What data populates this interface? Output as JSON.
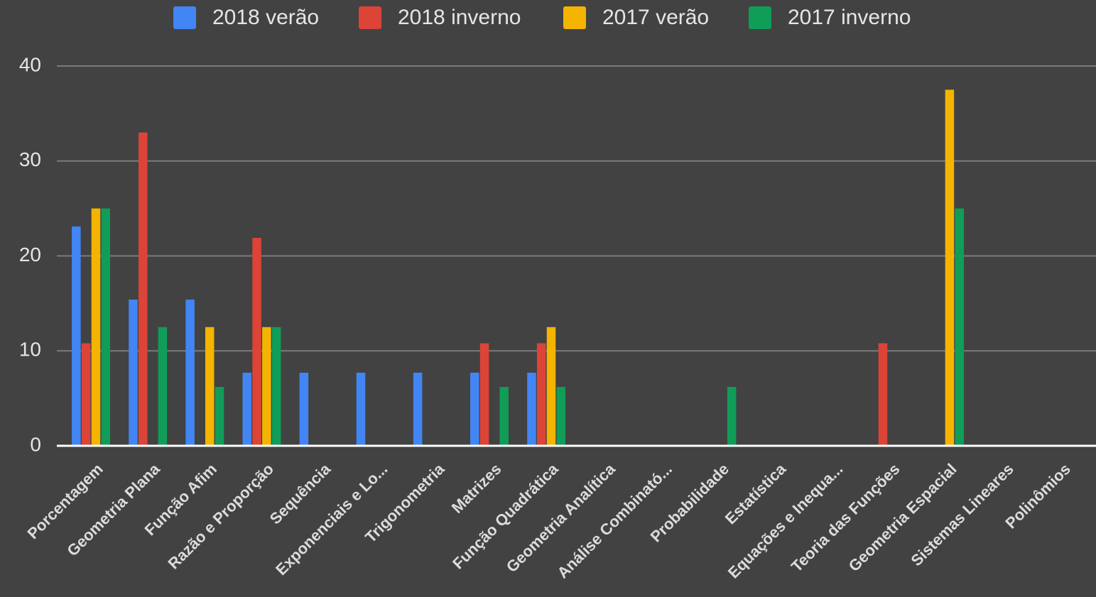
{
  "chart_data": {
    "type": "bar",
    "categories": [
      "Porcentagem",
      "Geometria Plana",
      "Função Afim",
      "Razão e Proporção",
      "Sequência",
      "Exponenciais e Lo...",
      "Trigonometria",
      "Matrizes",
      "Função Quadrática",
      "Geometria Analítica",
      "Análise Combinató...",
      "Probabilidade",
      "Estatística",
      "Equações e Inequa...",
      "Teoria das Funções",
      "Geometria Espacial",
      "Sistemas Lineares",
      "Polinômios"
    ],
    "series": [
      {
        "name": "2018 verão",
        "color": "#4285f4",
        "values": [
          23.1,
          15.4,
          15.4,
          7.7,
          7.7,
          7.7,
          7.7,
          7.7,
          7.7,
          0,
          0,
          0,
          0,
          0,
          0,
          0,
          0,
          0
        ]
      },
      {
        "name": "2018 inverno",
        "color": "#db4437",
        "values": [
          10.8,
          33,
          0,
          21.9,
          0,
          0,
          0,
          10.8,
          10.8,
          0,
          0,
          0,
          0,
          0,
          10.8,
          0,
          0,
          0
        ]
      },
      {
        "name": "2017 verão",
        "color": "#f4b400",
        "values": [
          25,
          0,
          12.5,
          12.5,
          0,
          0,
          0,
          0,
          12.5,
          0,
          0,
          0,
          0,
          0,
          0,
          37.5,
          0,
          0
        ]
      },
      {
        "name": "2017 inverno",
        "color": "#0f9d58",
        "values": [
          25,
          12.5,
          6.2,
          12.5,
          0,
          0,
          0,
          6.2,
          6.2,
          0,
          0,
          6.2,
          0,
          0,
          0,
          25,
          0,
          0
        ]
      }
    ],
    "ylim": [
      0,
      40
    ],
    "yticks": [
      0,
      10,
      20,
      30,
      40
    ],
    "grid": true,
    "legend": "top"
  }
}
